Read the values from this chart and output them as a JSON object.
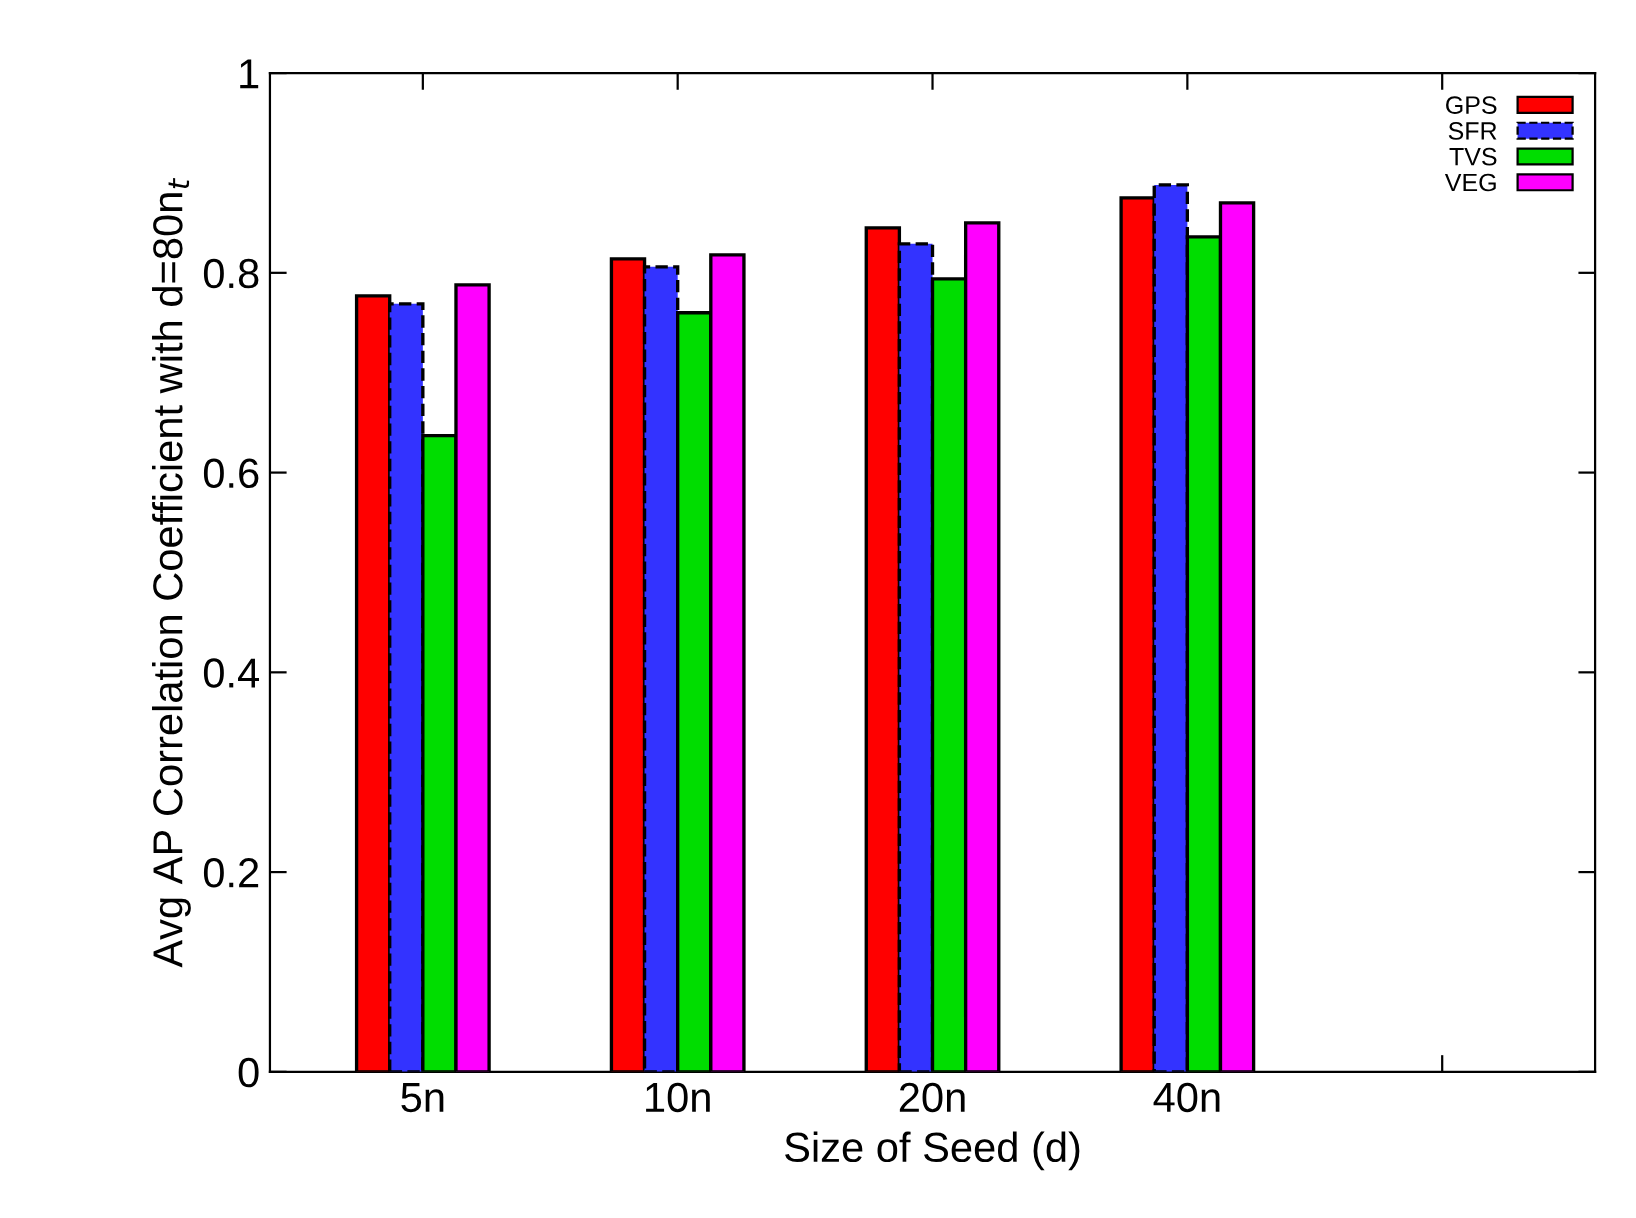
{
  "chart_data": {
    "type": "bar",
    "xlabel": "Size of Seed (d)",
    "ylabel": "Avg AP Correlation Coefficient with d=80n$_{t}$",
    "categories": [
      "5n",
      "10n",
      "20n",
      "40n",
      null
    ],
    "series": [
      {
        "name": "GPS",
        "color": "#ff0000",
        "values": [
          0.777,
          0.814,
          0.845,
          0.875,
          null
        ]
      },
      {
        "name": "SFR",
        "color": "#3333ff",
        "values": [
          0.769,
          0.806,
          0.829,
          0.888,
          null
        ]
      },
      {
        "name": "TVS",
        "color": "#00dd00",
        "values": [
          0.637,
          0.76,
          0.794,
          0.836,
          null
        ]
      },
      {
        "name": "VEG",
        "color": "#ff00ff",
        "values": [
          0.788,
          0.818,
          0.85,
          0.87,
          null
        ]
      }
    ],
    "ylim": [
      0,
      1
    ],
    "yticks": [
      0,
      0.2,
      0.4,
      0.6,
      0.8,
      1
    ],
    "grid": false,
    "legend": "top right"
  }
}
